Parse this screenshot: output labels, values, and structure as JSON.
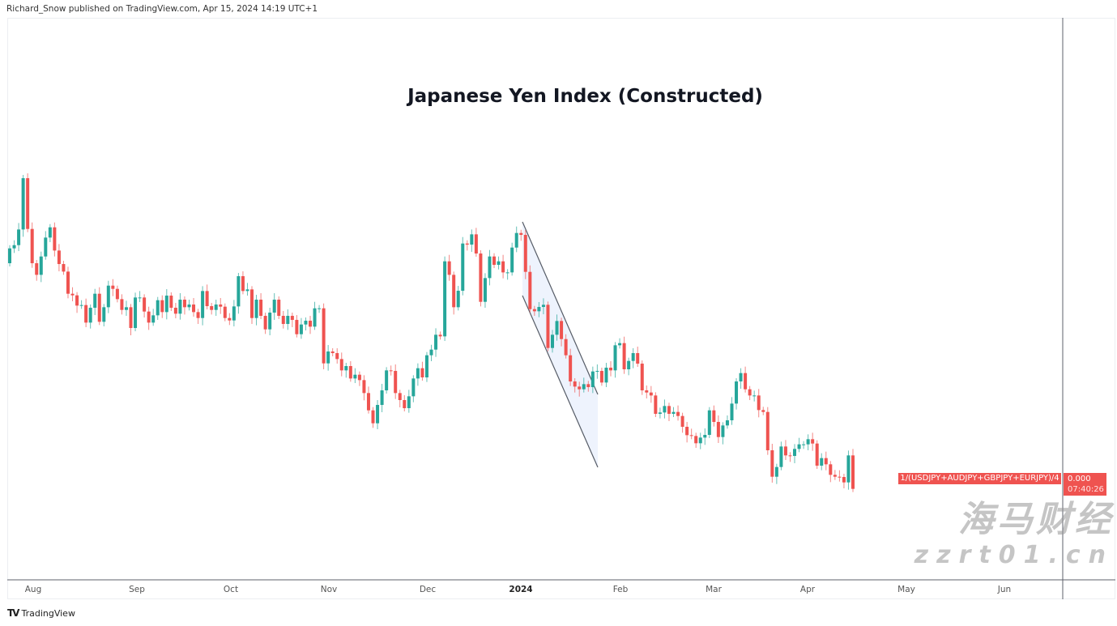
{
  "header": {
    "published": "Richard_Snow published on TradingView.com, Apr 15, 2024 14:19 UTC+1"
  },
  "footer": {
    "brand": "TradingView"
  },
  "watermark": {
    "line1": "海马财经",
    "line2": "zzrt01.cn"
  },
  "colors": {
    "up": "#26a69a",
    "down": "#ef5350",
    "channel_fill": "#eef3fd",
    "channel_line": "#555b66"
  },
  "chart_data": {
    "type": "candlestick",
    "title": "Japanese Yen Index (Constructed)",
    "series_label": "1/(USDJPY+AUDJPY+GBPJPY+EURJPY)/4",
    "last_value": "0.000",
    "countdown": "07:40:26",
    "y_axis": "no tick labels shown; values are relative index levels",
    "x_ticks": [
      {
        "label": "Aug",
        "bold": false
      },
      {
        "label": "Sep",
        "bold": false
      },
      {
        "label": "Oct",
        "bold": false
      },
      {
        "label": "Nov",
        "bold": false
      },
      {
        "label": "Dec",
        "bold": false
      },
      {
        "label": "2024",
        "bold": true
      },
      {
        "label": "Feb",
        "bold": false
      },
      {
        "label": "Mar",
        "bold": false
      },
      {
        "label": "Apr",
        "bold": false
      },
      {
        "label": "May",
        "bold": false
      },
      {
        "label": "Jun",
        "bold": false
      }
    ],
    "first_open": 97.5,
    "close": [
      103.0,
      104.2,
      110.0,
      129.0,
      110.2,
      97.5,
      93.2,
      100.0,
      107.0,
      110.8,
      102.2,
      97.2,
      94.4,
      86.2,
      85.6,
      81.8,
      82.0,
      75.5,
      81.0,
      86.2,
      75.8,
      81.2,
      89.2,
      88.0,
      84.2,
      80.2,
      81.2,
      73.5,
      84.8,
      84.8,
      79.6,
      75.5,
      78.2,
      83.8,
      79.4,
      85.5,
      81.0,
      78.8,
      84.0,
      81.2,
      82.2,
      79.4,
      77.2,
      87.2,
      81.6,
      80.2,
      82.2,
      81.4,
      77.2,
      76.3,
      81.5,
      92.7,
      87.2,
      87.8,
      77.2,
      84.0,
      78.0,
      73.0,
      79.2,
      84.0,
      78.0,
      75.0,
      78.0,
      76.5,
      71.2,
      74.8,
      76.2,
      74.0,
      80.8,
      80.8,
      60.4,
      64.8,
      64.2,
      62.0,
      57.8,
      59.4,
      54.8,
      56.2,
      54.2,
      49.4,
      43.0,
      38.2,
      45.0,
      50.4,
      57.8,
      57.6,
      49.4,
      46.8,
      43.8,
      48.2,
      54.8,
      58.6,
      55.2,
      63.4,
      65.5,
      71.0,
      70.4,
      98.2,
      93.2,
      81.2,
      87.3,
      104.8,
      104.4,
      108.2,
      101.1,
      83.2,
      92.0,
      100.0,
      96.9,
      98.2,
      94.1,
      94.1,
      103.3,
      108.7,
      108.0,
      94.3,
      80.5,
      79.7,
      81.3,
      82.1,
      66.1,
      71.0,
      76.1,
      69.4,
      63.4,
      53.7,
      51.8,
      50.8,
      52.7,
      51.6,
      57.4,
      57.6,
      53.3,
      58.8,
      57.8,
      67.1,
      67.9,
      58.2,
      61.3,
      64.2,
      60.3,
      50.4,
      49.6,
      48.5,
      41.7,
      42.2,
      44.6,
      41.7,
      42.4,
      40.9,
      36.9,
      33.8,
      33.5,
      30.8,
      32.9,
      33.9,
      43.0,
      38.7,
      33.1,
      37.4,
      39.3,
      45.5,
      53.7,
      56.8,
      50.8,
      48.5,
      48.5,
      43.1,
      42.4,
      28.2,
      18.4,
      22.0,
      29.6,
      26.3,
      26.1,
      28.7,
      30.4,
      30.4,
      32.3,
      30.7,
      22.5,
      25.3,
      23.0,
      19.1,
      18.4,
      18.3,
      16.3,
      26.3,
      13.9
    ]
  }
}
